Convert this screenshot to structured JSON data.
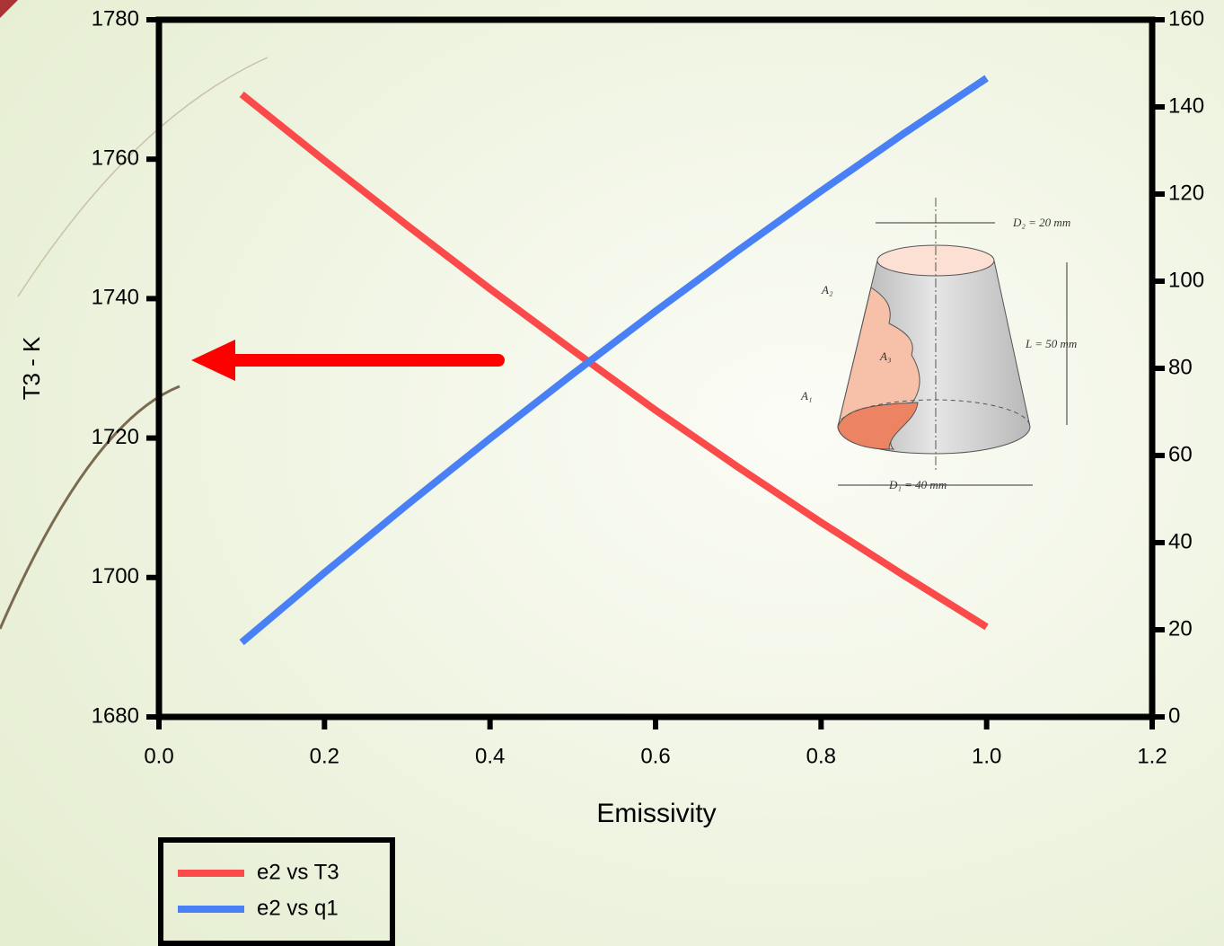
{
  "chart_data": {
    "type": "line",
    "x_label": "Emissivity",
    "y_label": "T3 - K",
    "x": [
      0.1,
      0.2,
      0.3,
      0.4,
      0.5,
      0.6,
      0.7,
      0.8,
      0.9,
      1.0
    ],
    "series": [
      {
        "name": "e2 vs T3",
        "color": "#fa4a4a",
        "values": [
          1769.3,
          1759.8,
          1750.5,
          1741.4,
          1732.6,
          1724.0,
          1715.8,
          1707.9,
          1700.3,
          1692.9
        ]
      },
      {
        "name": "e2 vs q1",
        "color": "#4a80f5",
        "axis": "y2",
        "values": [
          17.1,
          33.1,
          48.7,
          63.9,
          78.7,
          93.1,
          107.1,
          120.7,
          133.9,
          146.6
        ]
      }
    ],
    "xlim": [
      0,
      1.2
    ],
    "xticks": [
      {
        "value": 0,
        "label": "0.0"
      },
      0.2,
      0.4,
      0.6,
      0.8,
      {
        "value": 1,
        "label": "1.0"
      },
      1.2
    ],
    "ylim": [
      1680,
      1780
    ],
    "yticks": [
      1680,
      1700,
      1720,
      1740,
      1760,
      1780
    ],
    "y2lim": [
      0,
      160
    ],
    "y2ticks": [
      0,
      20,
      40,
      60,
      80,
      100,
      120,
      140,
      160
    ],
    "legend": "bottom-left",
    "figure_labels": [
      "D₂ = 20 mm",
      "A₂",
      "A₃",
      "L = 50 mm",
      "A₁",
      "D₁ = 40 mm"
    ]
  }
}
